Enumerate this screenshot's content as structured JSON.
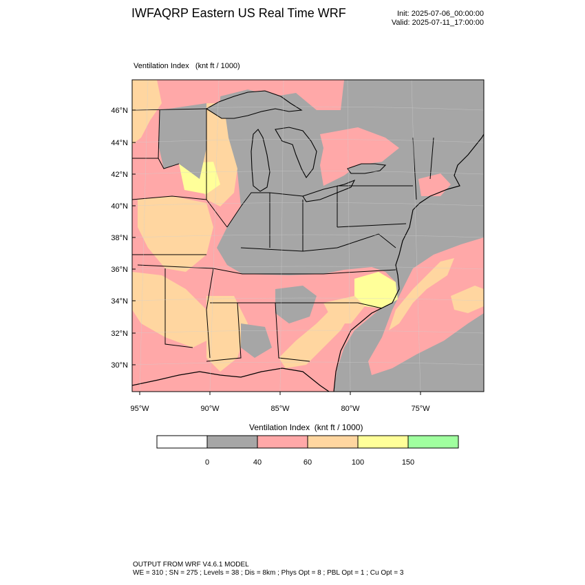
{
  "header": {
    "title": "IWFAQRP Eastern US Real Time WRF",
    "init": "Init: 2025-07-06_00:00:00",
    "valid": "Valid: 2025-07-11_17:00:00"
  },
  "field": {
    "name": "Ventilation Index",
    "units": "(knt ft / 1000)"
  },
  "map": {
    "lat_labels": [
      "46°N",
      "44°N",
      "42°N",
      "40°N",
      "38°N",
      "36°N",
      "34°N",
      "32°N",
      "30°N"
    ],
    "lon_labels": [
      "95°W",
      "90°W",
      "85°W",
      "80°W",
      "75°W"
    ]
  },
  "colorbar": {
    "title": "Ventilation Index  (knt ft / 1000)",
    "colors": [
      "#ffffff",
      "#a6a6a6",
      "#ffa8a8",
      "#ffd6a0",
      "#ffff99",
      "#a0ff9f"
    ],
    "tick_labels": [
      "0",
      "40",
      "60",
      "100",
      "150"
    ]
  },
  "footer": {
    "line1": "OUTPUT FROM WRF V4.6.1 MODEL",
    "line2": "WE = 310 ; SN = 275 ; Levels = 38 ; Dis = 8km ; Phys Opt = 8 ; PBL Opt = 1 ; Cu Opt = 3"
  }
}
